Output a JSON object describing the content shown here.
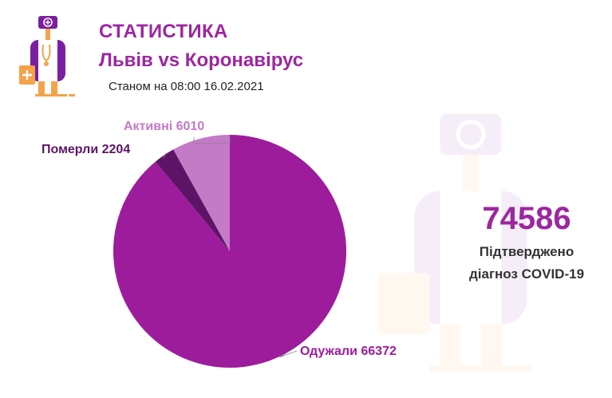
{
  "header": {
    "title": "СТАТИСТИКА",
    "subtitle": "Львів vs Коронавірус",
    "as_of": "Станом на 08:00 16.02.2021"
  },
  "summary": {
    "total": "74586",
    "caption_line1": "Підтверджено",
    "caption_line2": "діагноз COVID-19"
  },
  "colors": {
    "brand_purple": "#9c27a0",
    "recovered": "#9c1c9c",
    "deaths": "#5e1466",
    "active": "#c37ac7",
    "accent_orange": "#f5a34a"
  },
  "icons": {
    "logo": "doctor-icon",
    "watermark": "doctor-icon"
  },
  "chart_data": {
    "type": "pie",
    "title": "",
    "slices": [
      {
        "label": "Одужали",
        "value": 66372,
        "display": "Одужали 66372",
        "color": "#9c1c9c"
      },
      {
        "label": "Померли",
        "value": 2204,
        "display": "Померли 2204",
        "color": "#5e1466"
      },
      {
        "label": "Активні",
        "value": 6010,
        "display": "Активні 6010",
        "color": "#c37ac7"
      }
    ],
    "legend": "none"
  }
}
